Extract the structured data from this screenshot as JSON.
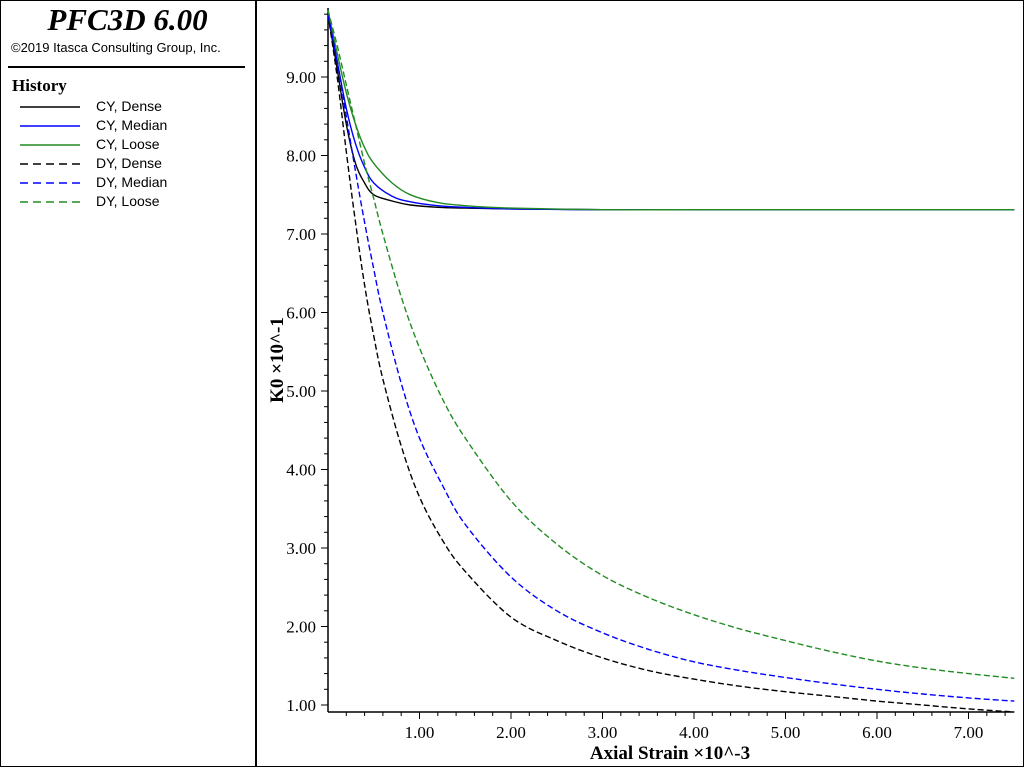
{
  "app": {
    "title": "PFC3D 6.00",
    "copyright": "©2019 Itasca Consulting Group, Inc."
  },
  "legend": {
    "title": "History",
    "items": [
      {
        "label": "CY, Dense",
        "color": "#000000",
        "style": "solid"
      },
      {
        "label": "CY, Median",
        "color": "#0000ff",
        "style": "solid"
      },
      {
        "label": "CY, Loose",
        "color": "#228b22",
        "style": "solid"
      },
      {
        "label": "DY, Dense",
        "color": "#000000",
        "style": "dashed"
      },
      {
        "label": "DY, Median",
        "color": "#0000ff",
        "style": "dashed"
      },
      {
        "label": "DY, Loose",
        "color": "#228b22",
        "style": "dashed"
      }
    ]
  },
  "chart_data": {
    "type": "line",
    "title": "",
    "xlabel": "Axial Strain ×10^-3",
    "ylabel": "K0 ×10^-1",
    "xlim": [
      0,
      7.5
    ],
    "ylim": [
      0.9,
      9.9
    ],
    "xticks": [
      "1.00",
      "2.00",
      "3.00",
      "4.00",
      "5.00",
      "6.00",
      "7.00"
    ],
    "yticks": [
      "1.00",
      "2.00",
      "3.00",
      "4.00",
      "5.00",
      "6.00",
      "7.00",
      "8.00",
      "9.00"
    ],
    "grid": false,
    "legend_position": "left-panel",
    "series": [
      {
        "name": "CY, Dense",
        "color": "#000000",
        "style": "solid",
        "x": [
          0,
          0.1,
          0.2,
          0.3,
          0.4,
          0.5,
          0.7,
          0.9,
          1.2,
          1.5,
          2,
          3,
          4,
          5,
          6,
          7,
          7.5
        ],
        "y": [
          9.8,
          9.1,
          8.4,
          7.9,
          7.65,
          7.5,
          7.42,
          7.37,
          7.34,
          7.33,
          7.32,
          7.31,
          7.31,
          7.31,
          7.31,
          7.31,
          7.31
        ]
      },
      {
        "name": "CY, Median",
        "color": "#0000ff",
        "style": "solid",
        "x": [
          0,
          0.1,
          0.2,
          0.3,
          0.4,
          0.5,
          0.7,
          0.9,
          1.2,
          1.5,
          2,
          3,
          4,
          5,
          6,
          7,
          7.5
        ],
        "y": [
          9.8,
          9.2,
          8.6,
          8.15,
          7.85,
          7.65,
          7.48,
          7.41,
          7.36,
          7.34,
          7.32,
          7.31,
          7.31,
          7.31,
          7.31,
          7.31,
          7.31
        ]
      },
      {
        "name": "CY, Loose",
        "color": "#228b22",
        "style": "solid",
        "x": [
          0,
          0.1,
          0.2,
          0.3,
          0.4,
          0.5,
          0.7,
          0.9,
          1.2,
          1.5,
          2,
          3,
          4,
          5,
          6,
          7,
          7.5
        ],
        "y": [
          9.85,
          9.3,
          8.8,
          8.4,
          8.1,
          7.9,
          7.65,
          7.5,
          7.4,
          7.36,
          7.33,
          7.31,
          7.31,
          7.31,
          7.31,
          7.31,
          7.31
        ]
      },
      {
        "name": "DY, Dense",
        "color": "#000000",
        "style": "dashed",
        "x": [
          0,
          0.1,
          0.2,
          0.3,
          0.4,
          0.5,
          0.6,
          0.8,
          1,
          1.25,
          1.5,
          2,
          2.5,
          3,
          3.5,
          4,
          4.5,
          5,
          5.5,
          6,
          6.5,
          7,
          7.5
        ],
        "y": [
          9.8,
          9.0,
          8.05,
          7.15,
          6.35,
          5.7,
          5.15,
          4.3,
          3.65,
          3.1,
          2.7,
          2.12,
          1.82,
          1.6,
          1.44,
          1.33,
          1.24,
          1.17,
          1.11,
          1.05,
          1.0,
          0.95,
          0.9
        ]
      },
      {
        "name": "DY, Median",
        "color": "#0000ff",
        "style": "dashed",
        "x": [
          0,
          0.1,
          0.2,
          0.3,
          0.4,
          0.5,
          0.6,
          0.8,
          1,
          1.25,
          1.5,
          2,
          2.5,
          3,
          3.5,
          4,
          4.5,
          5,
          5.5,
          6,
          6.5,
          7,
          7.5
        ],
        "y": [
          9.8,
          9.2,
          8.5,
          7.8,
          7.15,
          6.55,
          6.0,
          5.1,
          4.4,
          3.8,
          3.3,
          2.63,
          2.2,
          1.92,
          1.71,
          1.55,
          1.44,
          1.35,
          1.27,
          1.2,
          1.14,
          1.09,
          1.05
        ]
      },
      {
        "name": "DY, Loose",
        "color": "#228b22",
        "style": "dashed",
        "x": [
          0,
          0.1,
          0.2,
          0.3,
          0.4,
          0.5,
          0.6,
          0.8,
          1,
          1.25,
          1.5,
          2,
          2.5,
          3,
          3.5,
          4,
          4.5,
          5,
          5.5,
          6,
          6.5,
          7,
          7.5
        ],
        "y": [
          9.85,
          9.4,
          8.9,
          8.4,
          7.9,
          7.45,
          7.0,
          6.2,
          5.55,
          4.9,
          4.4,
          3.6,
          3.05,
          2.65,
          2.37,
          2.15,
          1.97,
          1.82,
          1.68,
          1.56,
          1.47,
          1.4,
          1.34
        ]
      }
    ]
  }
}
